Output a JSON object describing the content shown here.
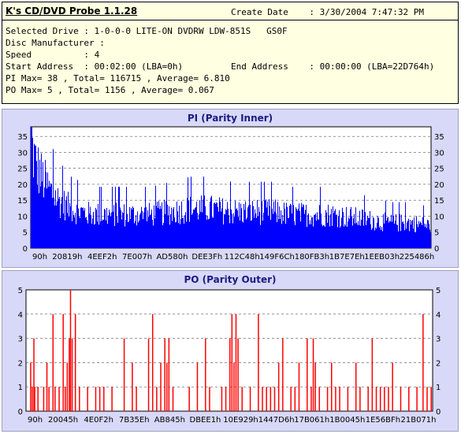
{
  "app": {
    "title": "K's CD/DVD Probe 1.1.28"
  },
  "info": {
    "create_date": "Create Date    : 3/30/2004 7:47:32 PM",
    "selected_drive": "Selected Drive : 1-0-0-0 LITE-ON DVDRW LDW-851S   GS0F",
    "disc_manufacturer": "Disc Manufacturer :",
    "speed": "Speed          : 4",
    "start_address": "Start Address  : 00:02:00 (LBA=0h)",
    "end_address": "End Address    : 00:00:00 (LBA=22D764h)",
    "pi_stats": "PI Max= 38 , Total= 116715 , Average= 6.810",
    "po_stats": "PO Max= 5 , Total= 1156 , Average= 0.067"
  },
  "colors": {
    "pi_bar": "#0000ff",
    "po_bar": "#ff0000",
    "panel_bg": "#d8d8f8",
    "plot_bg": "#ffffff"
  },
  "chart_data": [
    {
      "type": "bar",
      "title": "PI (Parity Inner)",
      "series": [
        {
          "name": "",
          "color": "#0000ff"
        }
      ],
      "x_tick_labels": [
        "90h",
        "20819h",
        "4EEF2h",
        "7E007h",
        "AD580h",
        "DEE3Fh",
        "112C48h",
        "149F6Ch",
        "180FB3h",
        "1B7E7Eh",
        "1EEB03h",
        "225486h"
      ],
      "ylim": [
        0,
        38
      ],
      "y_ticks": [
        0,
        5,
        10,
        15,
        20,
        25,
        30,
        35
      ],
      "grid": true,
      "profile": [
        [
          0.0,
          38
        ],
        [
          0.005,
          34
        ],
        [
          0.012,
          30
        ],
        [
          0.025,
          26
        ],
        [
          0.045,
          21
        ],
        [
          0.07,
          17
        ],
        [
          0.1,
          14
        ],
        [
          0.15,
          12
        ],
        [
          0.2,
          12
        ],
        [
          0.25,
          12
        ],
        [
          0.3,
          12
        ],
        [
          0.35,
          13
        ],
        [
          0.4,
          14
        ],
        [
          0.45,
          14
        ],
        [
          0.5,
          13
        ],
        [
          0.55,
          13
        ],
        [
          0.6,
          13
        ],
        [
          0.65,
          12
        ],
        [
          0.7,
          12
        ],
        [
          0.75,
          12
        ],
        [
          0.8,
          11
        ],
        [
          0.85,
          10
        ],
        [
          0.9,
          9
        ],
        [
          0.95,
          9
        ],
        [
          1.0,
          8
        ]
      ]
    },
    {
      "type": "bar",
      "title": "PO (Parity Outer)",
      "series": [
        {
          "name": "",
          "color": "#ff0000"
        }
      ],
      "x_tick_labels": [
        "90h",
        "20045h",
        "4E0F2h",
        "7B35Eh",
        "AB845h",
        "DBEE1h",
        "10E929h",
        "1447D6h",
        "17B061h",
        "1B0045h",
        "1E56BFh",
        "21B071h"
      ],
      "ylim": [
        0,
        5
      ],
      "y_ticks": [
        0,
        1,
        2,
        3,
        4,
        5
      ],
      "grid": true,
      "spikes": [
        [
          0.01,
          2
        ],
        [
          0.014,
          1
        ],
        [
          0.018,
          3
        ],
        [
          0.02,
          1
        ],
        [
          0.028,
          1
        ],
        [
          0.042,
          1
        ],
        [
          0.05,
          2
        ],
        [
          0.055,
          1
        ],
        [
          0.065,
          4
        ],
        [
          0.07,
          1
        ],
        [
          0.08,
          1
        ],
        [
          0.09,
          4
        ],
        [
          0.095,
          1
        ],
        [
          0.1,
          2
        ],
        [
          0.105,
          3
        ],
        [
          0.108,
          5
        ],
        [
          0.112,
          3
        ],
        [
          0.12,
          4
        ],
        [
          0.13,
          1
        ],
        [
          0.15,
          1
        ],
        [
          0.17,
          1
        ],
        [
          0.18,
          1
        ],
        [
          0.19,
          1
        ],
        [
          0.21,
          1
        ],
        [
          0.24,
          3
        ],
        [
          0.26,
          2
        ],
        [
          0.27,
          1
        ],
        [
          0.3,
          3
        ],
        [
          0.31,
          4
        ],
        [
          0.32,
          1
        ],
        [
          0.33,
          2
        ],
        [
          0.34,
          3
        ],
        [
          0.345,
          2
        ],
        [
          0.35,
          3
        ],
        [
          0.36,
          1
        ],
        [
          0.4,
          1
        ],
        [
          0.42,
          2
        ],
        [
          0.44,
          3
        ],
        [
          0.45,
          1
        ],
        [
          0.48,
          1
        ],
        [
          0.49,
          1
        ],
        [
          0.5,
          3
        ],
        [
          0.505,
          4
        ],
        [
          0.51,
          2
        ],
        [
          0.515,
          4
        ],
        [
          0.52,
          3
        ],
        [
          0.53,
          1
        ],
        [
          0.55,
          1
        ],
        [
          0.57,
          4
        ],
        [
          0.58,
          1
        ],
        [
          0.59,
          1
        ],
        [
          0.6,
          1
        ],
        [
          0.61,
          1
        ],
        [
          0.62,
          2
        ],
        [
          0.63,
          3
        ],
        [
          0.65,
          1
        ],
        [
          0.66,
          1
        ],
        [
          0.67,
          2
        ],
        [
          0.69,
          3
        ],
        [
          0.7,
          1
        ],
        [
          0.705,
          3
        ],
        [
          0.71,
          2
        ],
        [
          0.72,
          1
        ],
        [
          0.74,
          1
        ],
        [
          0.75,
          2
        ],
        [
          0.76,
          1
        ],
        [
          0.77,
          1
        ],
        [
          0.79,
          1
        ],
        [
          0.81,
          2
        ],
        [
          0.82,
          1
        ],
        [
          0.84,
          1
        ],
        [
          0.85,
          3
        ],
        [
          0.86,
          1
        ],
        [
          0.87,
          1
        ],
        [
          0.88,
          1
        ],
        [
          0.89,
          1
        ],
        [
          0.9,
          2
        ],
        [
          0.92,
          1
        ],
        [
          0.94,
          1
        ],
        [
          0.96,
          1
        ],
        [
          0.975,
          4
        ],
        [
          0.985,
          1
        ],
        [
          0.995,
          1
        ]
      ]
    }
  ]
}
